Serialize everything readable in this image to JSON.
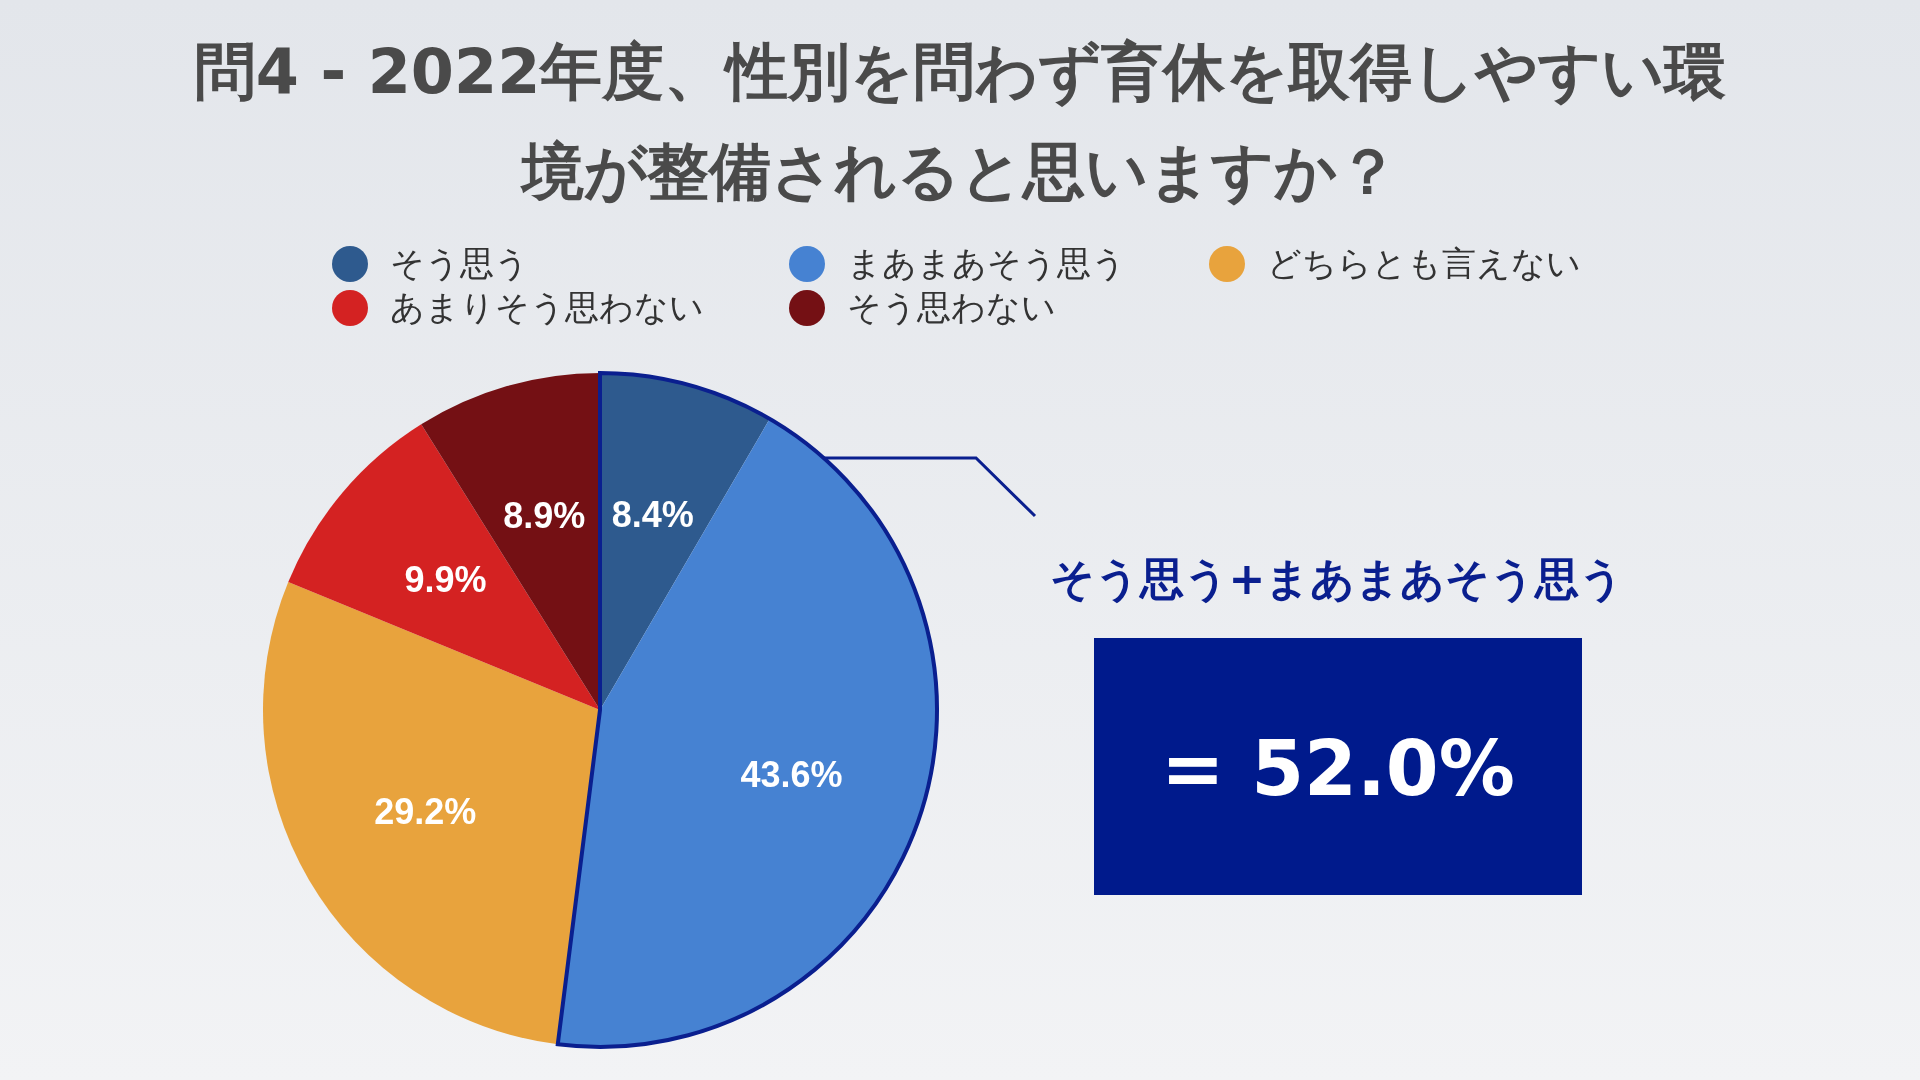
{
  "chart_data": {
    "type": "pie",
    "title": "問4 - 2022年度、性別を問わず育休を取得しやすい環境が整備されると思いますか？",
    "categories": [
      "そう思う",
      "まあまあそう思う",
      "どちらとも言えない",
      "あまりそう思わない",
      "そう思わない"
    ],
    "values": [
      8.4,
      43.6,
      29.2,
      9.9,
      8.9
    ],
    "colors": [
      "#2e5a8e",
      "#4682d2",
      "#e8a33d",
      "#d42222",
      "#741014"
    ],
    "value_labels": [
      "8.4%",
      "43.6%",
      "29.2%",
      "9.9%",
      "8.9%"
    ],
    "legend": "top",
    "annotations": [
      "そう思う+まあまあそう思う",
      "= 52.0%"
    ]
  }
}
